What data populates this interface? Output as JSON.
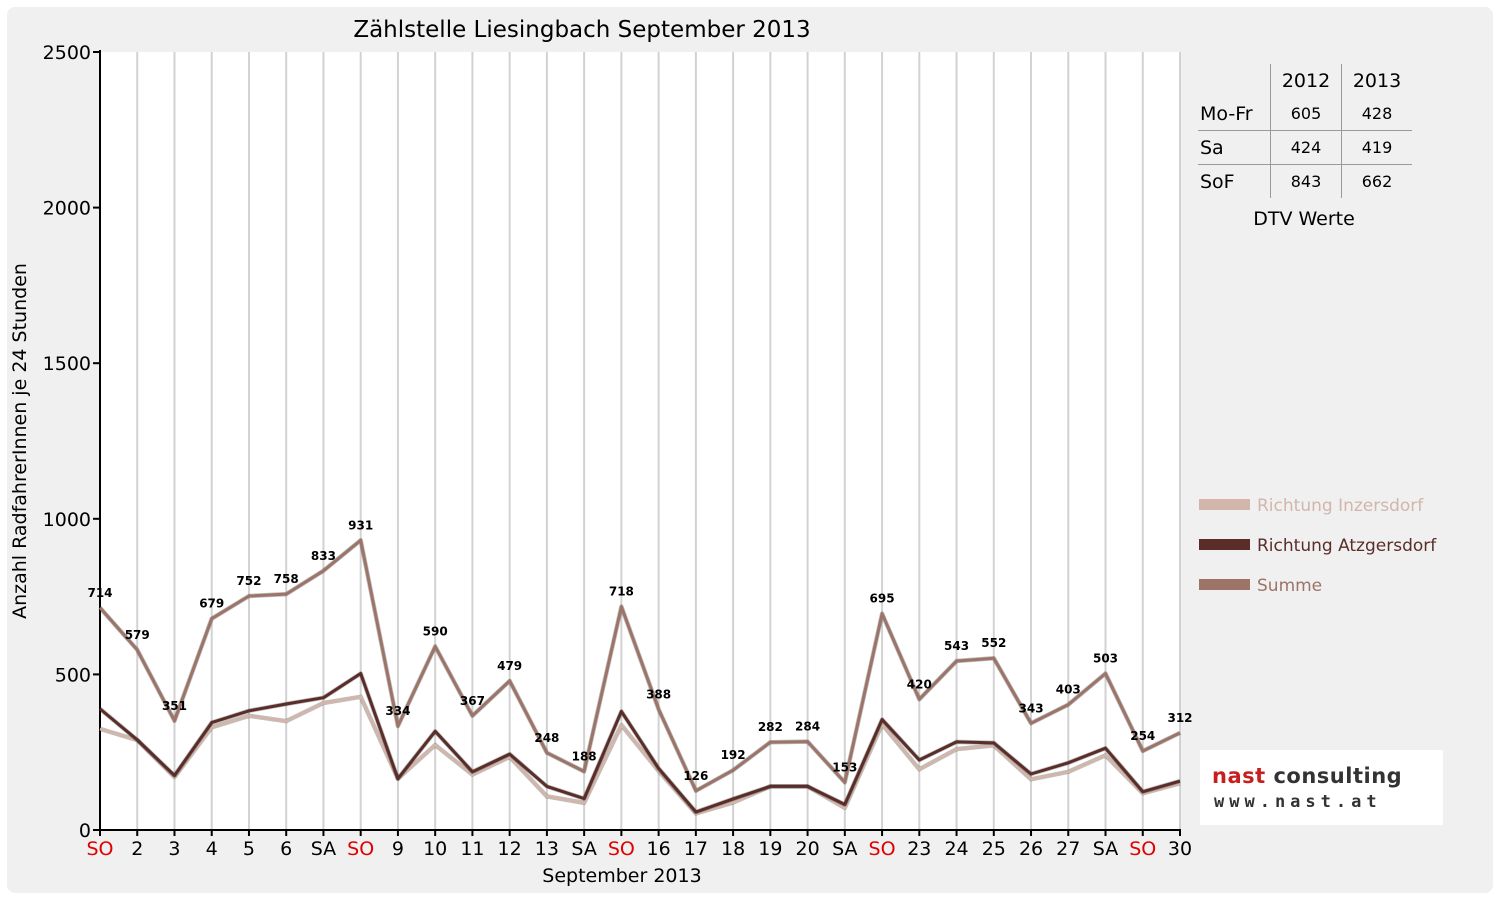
{
  "chart_data": {
    "type": "line",
    "title": "Zählstelle Liesingbach September 2013",
    "xlabel": "September 2013",
    "ylabel": "Anzahl RadfahrerInnen je 24 Stunden",
    "ylim": [
      0,
      2500
    ],
    "yticks": [
      0,
      500,
      1000,
      1500,
      2000,
      2500
    ],
    "grid": "vertical",
    "legend_position": "right",
    "categories": [
      "SO",
      "2",
      "3",
      "4",
      "5",
      "6",
      "SA",
      "SO",
      "9",
      "10",
      "11",
      "12",
      "13",
      "SA",
      "SO",
      "16",
      "17",
      "18",
      "19",
      "20",
      "SA",
      "SO",
      "23",
      "24",
      "25",
      "26",
      "27",
      "SA",
      "SO",
      "30"
    ],
    "category_colors": [
      "#e00000",
      "#000000",
      "#000000",
      "#000000",
      "#000000",
      "#000000",
      "#000000",
      "#e00000",
      "#000000",
      "#000000",
      "#000000",
      "#000000",
      "#000000",
      "#000000",
      "#e00000",
      "#000000",
      "#000000",
      "#000000",
      "#000000",
      "#000000",
      "#000000",
      "#e00000",
      "#000000",
      "#000000",
      "#000000",
      "#000000",
      "#000000",
      "#000000",
      "#e00000",
      "#000000"
    ],
    "series": [
      {
        "name": "Richtung Inzersdorf",
        "color": "#d2b6ab",
        "values": [
          325,
          289,
          170,
          330,
          367,
          350,
          408,
          428,
          165,
          273,
          178,
          235,
          108,
          87,
          337,
          190,
          53,
          88,
          140,
          140,
          71,
          340,
          195,
          260,
          272,
          163,
          187,
          240,
          118,
          150
        ]
      },
      {
        "name": "Richtung Atzgersdorf",
        "color": "#5a2d28",
        "values": [
          389,
          290,
          175,
          345,
          383,
          405,
          425,
          503,
          165,
          317,
          187,
          244,
          140,
          101,
          381,
          198,
          58,
          100,
          140,
          140,
          82,
          355,
          225,
          283,
          280,
          180,
          216,
          263,
          123,
          157
        ]
      },
      {
        "name": "Summe",
        "color": "#9c7468",
        "values": [
          714,
          579,
          351,
          679,
          752,
          758,
          833,
          931,
          334,
          590,
          367,
          479,
          248,
          188,
          718,
          388,
          126,
          192,
          282,
          284,
          153,
          695,
          420,
          543,
          552,
          343,
          403,
          503,
          254,
          312
        ],
        "data_labels": [
          "714",
          "579",
          "351",
          "679",
          "752",
          "758",
          "833",
          "931",
          "334",
          "590",
          "367",
          "479",
          "248",
          "188",
          "718",
          "388",
          "126",
          "192",
          "282",
          "284",
          "153",
          "695",
          "420",
          "543",
          "552",
          "343",
          "403",
          "503",
          "254",
          "312"
        ]
      }
    ]
  },
  "dtv_table": {
    "headers": [
      "2012",
      "2013"
    ],
    "rows": [
      {
        "label": "Mo-Fr",
        "v2012": "605",
        "v2013": "428"
      },
      {
        "label": "Sa",
        "v2012": "424",
        "v2013": "419"
      },
      {
        "label": "SoF",
        "v2012": "843",
        "v2013": "662"
      }
    ],
    "caption": "DTV Werte"
  },
  "logo": {
    "brand": "nast",
    "brand_suffix": "consulting",
    "url": "www.nast.at"
  }
}
